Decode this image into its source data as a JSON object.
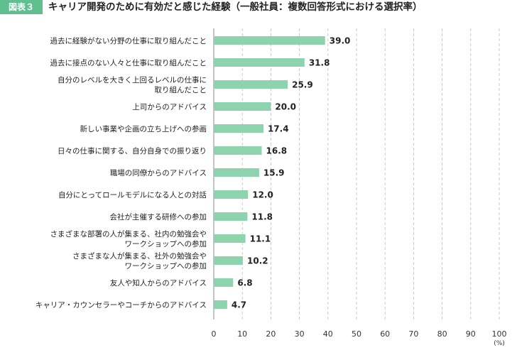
{
  "figure": {
    "badge": "図表３",
    "title": "キャリア開発のために有効だと感じた経験（一般社員：複数回答形式における選択率）"
  },
  "chart_data": {
    "type": "bar",
    "orientation": "horizontal",
    "unit_label": "(%)",
    "xlim": [
      0,
      100
    ],
    "x_ticks": [
      0,
      10,
      20,
      30,
      40,
      50,
      60,
      70,
      80,
      90,
      100
    ],
    "grid": "vertical-dashed",
    "bar_color": "#8dd3ad",
    "categories": [
      [
        "過去に経験がない分野の仕事に取り組んだこと"
      ],
      [
        "過去に接点のない人々と仕事に取り組んだこと"
      ],
      [
        "自分のレベルを大きく上回るレベルの仕事に",
        "取り組んだこと"
      ],
      [
        "上司からのアドバイス"
      ],
      [
        "新しい事業や企画の立ち上げへの参画"
      ],
      [
        "日々の仕事に関する、自分自身での振り返り"
      ],
      [
        "職場の同僚からのアドバイス"
      ],
      [
        "自分にとってロールモデルになる人との対話"
      ],
      [
        "会社が主催する研修への参加"
      ],
      [
        "さまざまな部署の人が集まる、社内の勉強会や",
        "ワークショップへの参加"
      ],
      [
        "さまざまな人が集まる、社外の勉強会や",
        "ワークショップへの参加"
      ],
      [
        "友人や知人からのアドバイス"
      ],
      [
        "キャリア・カウンセラーやコーチからのアドバイス"
      ]
    ],
    "values": [
      39.0,
      31.8,
      25.9,
      20.0,
      17.4,
      16.8,
      15.9,
      12.0,
      11.8,
      11.1,
      10.2,
      6.8,
      4.7
    ],
    "value_labels": [
      "39.0",
      "31.8",
      "25.9",
      "20.0",
      "17.4",
      "16.8",
      "15.9",
      "12.0",
      "11.8",
      "11.1",
      "10.2",
      "6.8",
      "4.7"
    ]
  }
}
